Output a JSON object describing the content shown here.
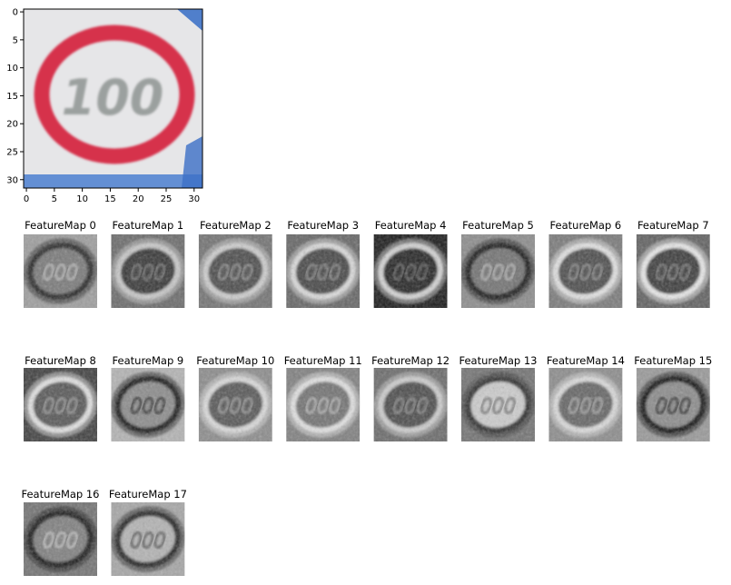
{
  "input_image": {
    "x_ticks": [
      "0",
      "5",
      "10",
      "15",
      "20",
      "25",
      "30"
    ],
    "y_ticks": [
      "0",
      "5",
      "10",
      "15",
      "20",
      "25",
      "30"
    ],
    "sign_text": "100",
    "colors": {
      "ring": "#d6324c",
      "background": "#eaeaea",
      "corner": "#3f73c8"
    }
  },
  "feature_maps": [
    {
      "title": "FeatureMap 0",
      "bg": 0.62,
      "ring": 0.16,
      "inner": 0.48
    },
    {
      "title": "FeatureMap 1",
      "bg": 0.42,
      "ring": 0.78,
      "inner": 0.22
    },
    {
      "title": "FeatureMap 2",
      "bg": 0.45,
      "ring": 0.8,
      "inner": 0.3
    },
    {
      "title": "FeatureMap 3",
      "bg": 0.4,
      "ring": 0.85,
      "inner": 0.28
    },
    {
      "title": "FeatureMap 4",
      "bg": 0.1,
      "ring": 0.82,
      "inner": 0.15
    },
    {
      "title": "FeatureMap 5",
      "bg": 0.55,
      "ring": 0.12,
      "inner": 0.45
    },
    {
      "title": "FeatureMap 6",
      "bg": 0.48,
      "ring": 0.88,
      "inner": 0.3
    },
    {
      "title": "FeatureMap 7",
      "bg": 0.38,
      "ring": 0.9,
      "inner": 0.24
    },
    {
      "title": "FeatureMap 8",
      "bg": 0.25,
      "ring": 0.88,
      "inner": 0.35
    },
    {
      "title": "FeatureMap 9",
      "bg": 0.7,
      "ring": 0.1,
      "inner": 0.55
    },
    {
      "title": "FeatureMap 10",
      "bg": 0.55,
      "ring": 0.85,
      "inner": 0.35
    },
    {
      "title": "FeatureMap 11",
      "bg": 0.5,
      "ring": 0.88,
      "inner": 0.45
    },
    {
      "title": "FeatureMap 12",
      "bg": 0.42,
      "ring": 0.8,
      "inner": 0.3
    },
    {
      "title": "FeatureMap 13",
      "bg": 0.45,
      "ring": 0.2,
      "inner": 0.8
    },
    {
      "title": "FeatureMap 14",
      "bg": 0.55,
      "ring": 0.85,
      "inner": 0.4
    },
    {
      "title": "FeatureMap 15",
      "bg": 0.6,
      "ring": 0.08,
      "inner": 0.55
    },
    {
      "title": "FeatureMap 16",
      "bg": 0.45,
      "ring": 0.1,
      "inner": 0.5
    },
    {
      "title": "FeatureMap 17",
      "bg": 0.65,
      "ring": 0.15,
      "inner": 0.7
    }
  ]
}
